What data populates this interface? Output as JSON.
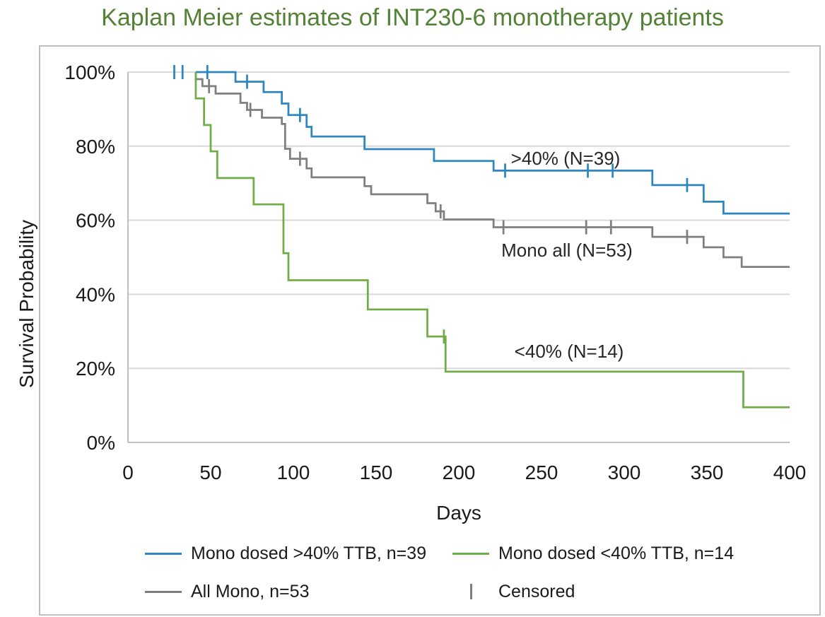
{
  "title": {
    "text": "Kaplan Meier estimates of INT230-6 monotherapy patients",
    "color": "#538135"
  },
  "y_axis": {
    "label": "Survival Probability",
    "ticks": [
      {
        "text": "100%",
        "value": 100
      },
      {
        "text": "80%",
        "value": 80
      },
      {
        "text": "60%",
        "value": 60
      },
      {
        "text": "40%",
        "value": 40
      },
      {
        "text": "20%",
        "value": 20
      },
      {
        "text": "0%",
        "value": 0
      }
    ]
  },
  "x_axis": {
    "label": "Days",
    "ticks": [
      {
        "text": "0",
        "value": 0
      },
      {
        "text": "50",
        "value": 50
      },
      {
        "text": "100",
        "value": 100
      },
      {
        "text": "150",
        "value": 150
      },
      {
        "text": "200",
        "value": 200
      },
      {
        "text": "250",
        "value": 250
      },
      {
        "text": "300",
        "value": 300
      },
      {
        "text": "350",
        "value": 350
      },
      {
        "text": "400",
        "value": 400
      }
    ]
  },
  "legend": {
    "items": [
      {
        "key": "mono-gt40",
        "label": "Mono dosed >40% TTB, n=39",
        "swatch": "line",
        "color": "#2E86C1"
      },
      {
        "key": "mono-lt40",
        "label": "Mono dosed <40% TTB, n=14",
        "swatch": "line",
        "color": "#70AD47"
      },
      {
        "key": "all-mono",
        "label": "All Mono, n=53",
        "swatch": "line",
        "color": "#7F7F7F"
      },
      {
        "key": "censored",
        "label": "Censored",
        "swatch": "tick",
        "color": "#7F7F7F"
      }
    ]
  },
  "colors": {
    "grid": "#D9D9D9",
    "axis": "#BFBFBF",
    "text": "#1a1a1a"
  },
  "chart_data": {
    "type": "line",
    "subtype": "kaplan-meier-step",
    "title": "Kaplan Meier estimates of INT230-6 monotherapy patients",
    "xlabel": "Days",
    "ylabel": "Survival Probability",
    "xlim": [
      0,
      400
    ],
    "ylim": [
      0,
      100
    ],
    "grid": "horizontal",
    "legend_position": "bottom",
    "series": [
      {
        "name": "Mono dosed >40% TTB, n=39",
        "annotation": ">40% (N=39)",
        "color": "#2E86C1",
        "n": 39,
        "steps_day_pct": [
          [
            41,
            100
          ],
          [
            65,
            97.4
          ],
          [
            82,
            94.6
          ],
          [
            93,
            91.5
          ],
          [
            97,
            88.4
          ],
          [
            108,
            85.2
          ],
          [
            111,
            82.6
          ],
          [
            143,
            79.2
          ],
          [
            185,
            76.0
          ],
          [
            221,
            73.4
          ],
          [
            317,
            69.5
          ],
          [
            348,
            65.0
          ],
          [
            360,
            61.8
          ],
          [
            400,
            61.8
          ]
        ],
        "censored_day_pct": [
          [
            28,
            100
          ],
          [
            33,
            100
          ],
          [
            48,
            100
          ],
          [
            72,
            97.4
          ],
          [
            104,
            88.4
          ],
          [
            228,
            73.4
          ],
          [
            278,
            73.4
          ],
          [
            293,
            73.4
          ],
          [
            338,
            69.5
          ]
        ]
      },
      {
        "name": "All Mono, n=53",
        "annotation": "Mono all (N=53)",
        "color": "#7F7F7F",
        "n": 53,
        "steps_day_pct": [
          [
            41,
            100
          ],
          [
            41,
            98.1
          ],
          [
            45,
            96.2
          ],
          [
            53,
            94.2
          ],
          [
            68,
            91.7
          ],
          [
            72,
            89.8
          ],
          [
            81,
            87.7
          ],
          [
            93,
            86.0
          ],
          [
            95,
            79.3
          ],
          [
            98,
            76.6
          ],
          [
            108,
            74.0
          ],
          [
            111,
            71.6
          ],
          [
            143,
            69.2
          ],
          [
            147,
            67.0
          ],
          [
            181,
            64.6
          ],
          [
            186,
            62.4
          ],
          [
            191,
            60.2
          ],
          [
            221,
            58.1
          ],
          [
            317,
            55.5
          ],
          [
            348,
            52.7
          ],
          [
            360,
            50.0
          ],
          [
            371,
            47.4
          ],
          [
            400,
            47.4
          ]
        ],
        "censored_day_pct": [
          [
            49,
            96.2
          ],
          [
            74,
            89.8
          ],
          [
            104,
            76.6
          ],
          [
            189,
            62.4
          ],
          [
            227,
            58.1
          ],
          [
            277,
            58.1
          ],
          [
            292,
            58.1
          ],
          [
            338,
            55.5
          ]
        ]
      },
      {
        "name": "Mono dosed <40% TTB, n=14",
        "annotation": "<40% (N=14)",
        "color": "#70AD47",
        "n": 14,
        "steps_day_pct": [
          [
            41,
            100
          ],
          [
            41,
            92.9
          ],
          [
            46,
            85.7
          ],
          [
            50,
            78.6
          ],
          [
            54,
            71.4
          ],
          [
            76,
            64.3
          ],
          [
            94,
            51.1
          ],
          [
            97,
            43.8
          ],
          [
            145,
            35.9
          ],
          [
            181,
            28.6
          ],
          [
            192,
            19.1
          ],
          [
            372,
            9.5
          ],
          [
            400,
            9.5
          ]
        ],
        "censored_day_pct": [
          [
            191,
            28.6
          ]
        ]
      }
    ]
  }
}
